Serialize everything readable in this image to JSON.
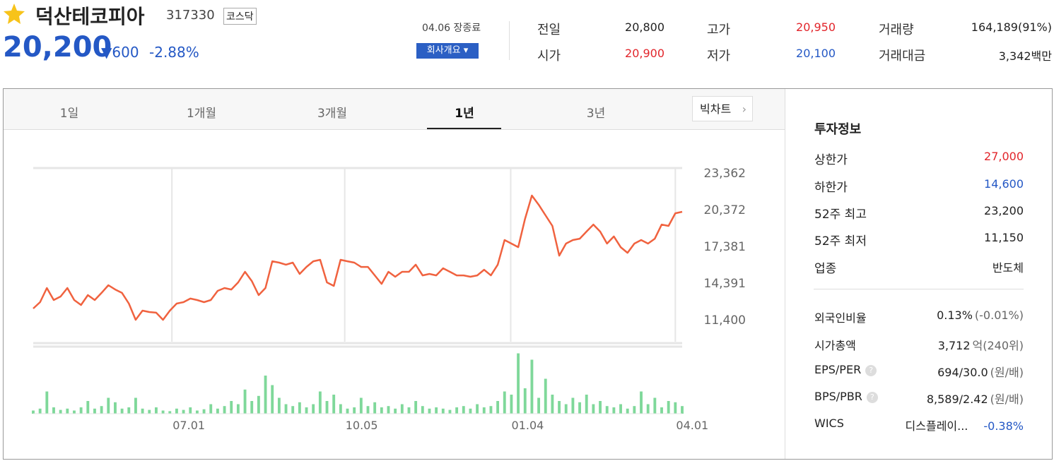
{
  "header": {
    "name": "덕산테코피아",
    "code": "317330",
    "market": "코스닥",
    "price": "20,200",
    "change": "▼600",
    "change_rate": "-2.88%",
    "status": "04.06 장종료",
    "company_button": "회사개요 ▾"
  },
  "summary": [
    {
      "label": "전일",
      "value": "20,800"
    },
    {
      "label": "고가",
      "value": "20,950"
    },
    {
      "label": "거래량",
      "value": "164,189(91%)"
    },
    {
      "label": "시가",
      "value": "20,900"
    },
    {
      "label": "저가",
      "value": "20,100"
    },
    {
      "label": "거래대금",
      "value": "3,342백만"
    }
  ],
  "tabs": [
    "1일",
    "1개월",
    "3개월",
    "1년",
    "3년"
  ],
  "big_chart": "빅차트",
  "chart_data": {
    "type": "line",
    "color": "#f0623f",
    "values": [
      12320,
      12840,
      13990,
      13010,
      13300,
      13990,
      13010,
      12610,
      13410,
      13010,
      13590,
      14220,
      13870,
      13590,
      12720,
      11400,
      12150,
      12030,
      11980,
      11400,
      12150,
      12720,
      12840,
      13130,
      13010,
      12840,
      13010,
      13760,
      13990,
      13870,
      14450,
      15310,
      14560,
      13410,
      13990,
      16170,
      16060,
      15890,
      16060,
      15140,
      15710,
      16170,
      16290,
      14450,
      14160,
      16290,
      16170,
      16060,
      15710,
      15710,
      15020,
      14330,
      15310,
      14910,
      15310,
      15310,
      15890,
      15020,
      15140,
      15020,
      15600,
      15310,
      15020,
      15020,
      14910,
      15020,
      15480,
      15020,
      15890,
      17900,
      17610,
      17320,
      19620,
      21520,
      20770,
      19910,
      19050,
      16630,
      17610,
      17900,
      18010,
      18590,
      19160,
      18590,
      17610,
      18190,
      17320,
      16860,
      17610,
      17900,
      17610,
      18010,
      19160,
      19050,
      20080,
      20200
    ],
    "volume": {
      "color": "#7fd89a",
      "ylim": [
        0,
        100
      ],
      "values": [
        5,
        8,
        35,
        10,
        6,
        8,
        5,
        10,
        20,
        8,
        12,
        25,
        18,
        8,
        10,
        25,
        8,
        6,
        10,
        5,
        4,
        8,
        6,
        10,
        5,
        7,
        15,
        8,
        12,
        20,
        15,
        38,
        20,
        28,
        60,
        45,
        25,
        15,
        12,
        18,
        10,
        15,
        35,
        20,
        30,
        15,
        8,
        10,
        25,
        12,
        18,
        10,
        12,
        8,
        15,
        10,
        20,
        12,
        8,
        10,
        8,
        6,
        10,
        12,
        8,
        15,
        10,
        12,
        20,
        35,
        30,
        95,
        40,
        85,
        25,
        55,
        30,
        20,
        15,
        25,
        18,
        30,
        15,
        20,
        12,
        10,
        15,
        8,
        12,
        35,
        15,
        25,
        10,
        20,
        18,
        12
      ]
    },
    "xlim": [
      0,
      95
    ],
    "ylim": [
      9617,
      23765
    ],
    "yticks": [
      {
        "value": 23362,
        "label": "23,362"
      },
      {
        "value": 20372,
        "label": "20,372"
      },
      {
        "value": 17381,
        "label": "17,381"
      },
      {
        "value": 14391,
        "label": "14,391"
      },
      {
        "value": 11400,
        "label": "11,400"
      }
    ],
    "xticks": [
      {
        "value": 20.3,
        "label": "07.01"
      },
      {
        "value": 45.6,
        "label": "10.05"
      },
      {
        "value": 69.9,
        "label": "01.04"
      },
      {
        "value": 94,
        "label": "04.01"
      }
    ],
    "grid": false,
    "xgrid": true
  },
  "invest_info": {
    "title": "투자정보",
    "rows": [
      {
        "label": "상한가",
        "value": "27,000"
      },
      {
        "label": "하한가",
        "value": "14,600"
      },
      {
        "label": "52주 최고",
        "value": "23,200"
      },
      {
        "label": "52주 최저",
        "value": "11,150"
      },
      {
        "label": "업종",
        "value": "반도체"
      }
    ],
    "rows2": [
      {
        "label": "외국인비율",
        "value": "0.13%",
        "note": "(-0.01%)"
      },
      {
        "label": "시가총액",
        "value": "3,712",
        "note": "억(240위)"
      },
      {
        "label": "EPS/PER",
        "value": "694/30.0",
        "note": "(원/배)"
      },
      {
        "label": "BPS/PBR",
        "value": "8,589/2.42",
        "note": "(원/배)"
      },
      {
        "label": "WICS",
        "value": "디스플레이...",
        "note": "-0.38%"
      }
    ]
  }
}
